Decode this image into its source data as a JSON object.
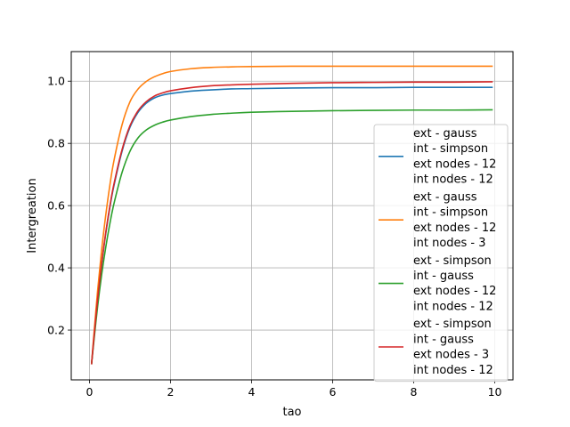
{
  "chart_data": {
    "type": "line",
    "title": "",
    "xlabel": "tao",
    "ylabel": "Intergreation",
    "xlim": [
      -0.45,
      10.45
    ],
    "ylim": [
      0.04,
      1.095
    ],
    "xticks": [
      0,
      2,
      4,
      6,
      8,
      10
    ],
    "yticks": [
      0.2,
      0.4,
      0.6,
      0.8,
      1.0
    ],
    "xtick_labels": [
      "0",
      "2",
      "4",
      "6",
      "8",
      "10"
    ],
    "ytick_labels": [
      "0.2",
      "0.4",
      "0.6",
      "0.8",
      "1.0"
    ],
    "grid": true,
    "legend_position": "bottom-right",
    "x": [
      0.05,
      0.1,
      0.2,
      0.3,
      0.4,
      0.5,
      0.6,
      0.8,
      1.0,
      1.2,
      1.4,
      1.6,
      1.8,
      2.0,
      2.5,
      3.0,
      3.5,
      4.0,
      5.0,
      6.0,
      7.0,
      8.0,
      9.0,
      9.95
    ],
    "series": [
      {
        "name_lines": [
          "ext - gauss",
          "int - simpson",
          "ext nodes - 12",
          "int nodes - 12"
        ],
        "color": "#1f77b4",
        "values": [
          0.09,
          0.161,
          0.296,
          0.411,
          0.509,
          0.592,
          0.662,
          0.773,
          0.852,
          0.9,
          0.929,
          0.946,
          0.955,
          0.96,
          0.968,
          0.972,
          0.975,
          0.976,
          0.978,
          0.979,
          0.979,
          0.98,
          0.98,
          0.98
        ]
      },
      {
        "name_lines": [
          "ext - gauss",
          "int - simpson",
          "ext nodes - 12",
          "int nodes - 3"
        ],
        "color": "#ff7f0e",
        "values": [
          0.09,
          0.172,
          0.326,
          0.458,
          0.568,
          0.663,
          0.742,
          0.858,
          0.934,
          0.975,
          0.999,
          1.014,
          1.024,
          1.031,
          1.04,
          1.044,
          1.046,
          1.047,
          1.048,
          1.048,
          1.048,
          1.048,
          1.048,
          1.048
        ]
      },
      {
        "name_lines": [
          "ext - simpson",
          "int - gauss",
          "ext nodes - 12",
          "int nodes - 12"
        ],
        "color": "#2ca02c",
        "values": [
          0.09,
          0.154,
          0.275,
          0.378,
          0.465,
          0.54,
          0.604,
          0.705,
          0.775,
          0.818,
          0.843,
          0.858,
          0.868,
          0.875,
          0.886,
          0.893,
          0.897,
          0.9,
          0.903,
          0.905,
          0.906,
          0.907,
          0.907,
          0.908
        ]
      },
      {
        "name_lines": [
          "ext - simpson",
          "int - gauss",
          "ext nodes - 3",
          "int nodes - 12"
        ],
        "color": "#d62728",
        "values": [
          0.09,
          0.162,
          0.298,
          0.414,
          0.512,
          0.596,
          0.667,
          0.778,
          0.857,
          0.905,
          0.934,
          0.952,
          0.962,
          0.969,
          0.979,
          0.985,
          0.988,
          0.99,
          0.993,
          0.995,
          0.996,
          0.997,
          0.997,
          0.998
        ]
      }
    ]
  }
}
